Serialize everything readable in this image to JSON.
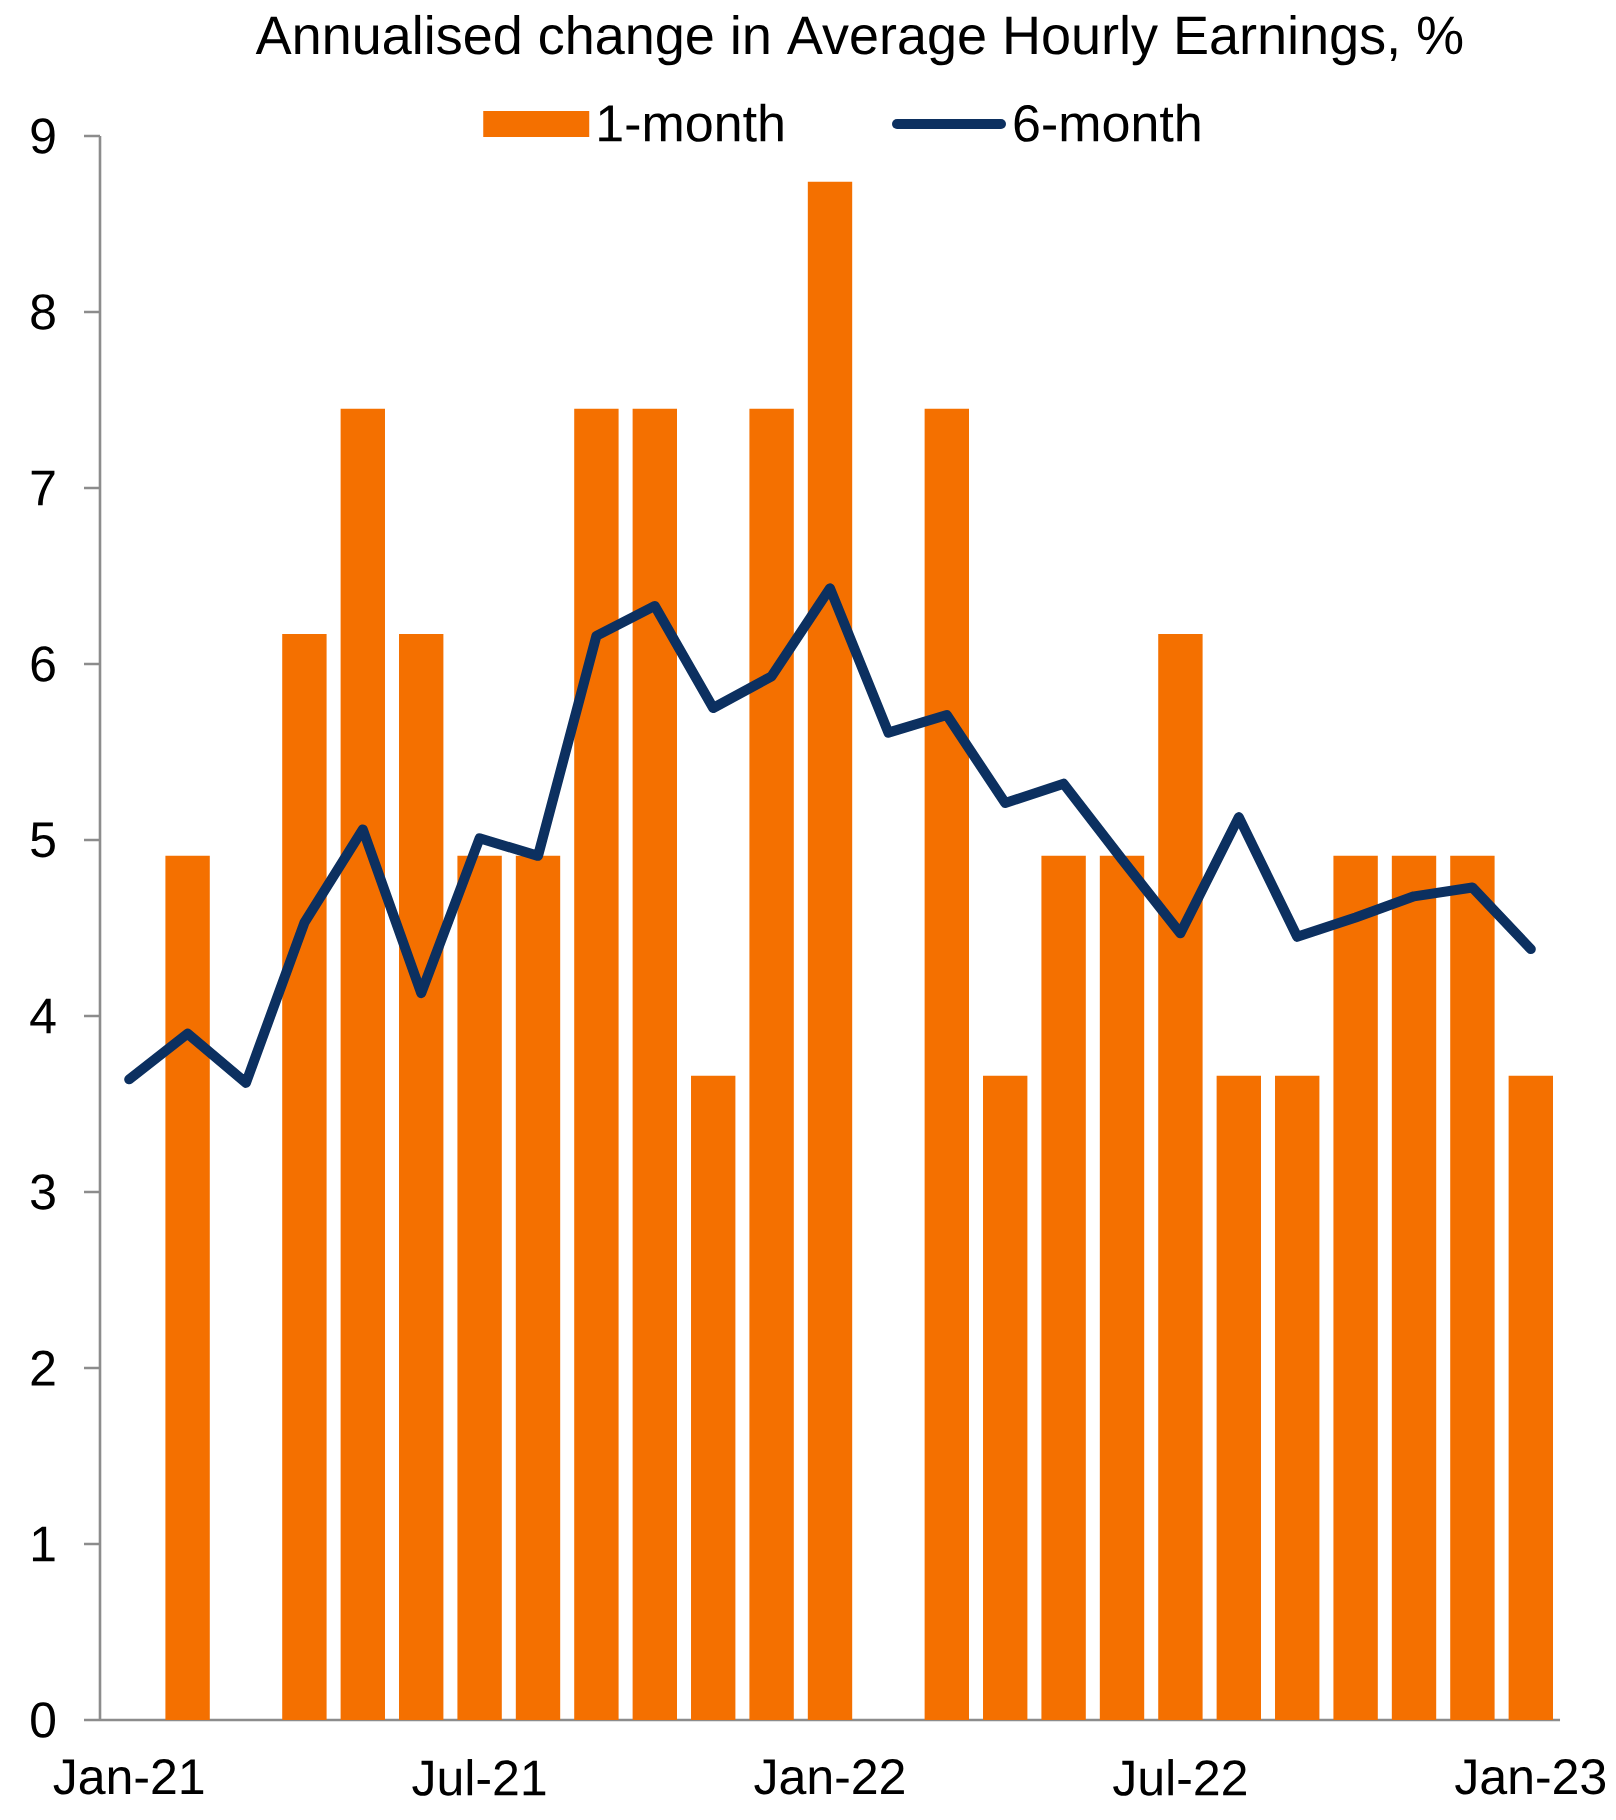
{
  "chart_data": {
    "type": "bar",
    "title": "Annualised change in Average Hourly Earnings, %",
    "categories": [
      "Jan-21",
      null,
      null,
      null,
      null,
      null,
      "Jul-21",
      null,
      null,
      null,
      null,
      null,
      "Jan-22",
      null,
      null,
      null,
      null,
      null,
      "Jul-22",
      null,
      null,
      null,
      null,
      null,
      "Jan-23"
    ],
    "series": [
      {
        "name": "1-month",
        "color": "#f47000",
        "values": [
          null,
          4.91,
          null,
          6.17,
          7.45,
          6.17,
          4.91,
          4.91,
          7.45,
          7.45,
          3.66,
          7.45,
          8.74,
          null,
          7.45,
          3.66,
          4.91,
          4.91,
          6.17,
          3.66,
          3.66,
          4.91,
          4.91,
          4.91,
          3.66
        ]
      },
      {
        "name": "6-month",
        "type": "line",
        "color": "#0c3060",
        "values": [
          3.64,
          3.9,
          3.62,
          4.53,
          5.06,
          4.13,
          5.01,
          4.91,
          6.16,
          6.33,
          5.75,
          5.93,
          6.43,
          5.61,
          5.71,
          5.21,
          5.32,
          4.89,
          4.47,
          5.13,
          4.45,
          4.56,
          4.68,
          4.73,
          4.38
        ]
      }
    ],
    "ylim": [
      0,
      9
    ],
    "yticks": [
      0,
      1,
      2,
      3,
      4,
      5,
      6,
      7,
      8,
      9
    ],
    "legend": "top"
  }
}
